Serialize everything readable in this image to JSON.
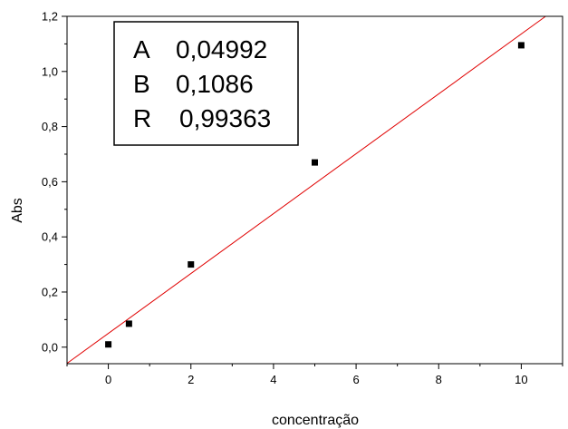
{
  "chart_data": {
    "type": "scatter",
    "xlabel": "concentração",
    "ylabel": "Abs",
    "xlim": [
      -1,
      11
    ],
    "ylim": [
      -0.06,
      1.2
    ],
    "x_ticks": [
      0,
      2,
      4,
      6,
      8,
      10
    ],
    "x_tick_labels": [
      "0",
      "2",
      "4",
      "6",
      "8",
      "10"
    ],
    "y_ticks": [
      0.0,
      0.2,
      0.4,
      0.6,
      0.8,
      1.0,
      1.2
    ],
    "y_tick_labels": [
      "0,0",
      "0,2",
      "0,4",
      "0,6",
      "0,8",
      "1,0",
      "1,2"
    ],
    "points": [
      {
        "x": 0,
        "y": 0.01
      },
      {
        "x": 0.5,
        "y": 0.085
      },
      {
        "x": 2,
        "y": 0.3
      },
      {
        "x": 5,
        "y": 0.67
      },
      {
        "x": 10,
        "y": 1.095
      }
    ],
    "fit_line": {
      "intercept": 0.04992,
      "slope": 0.1086,
      "color": "#e00000"
    },
    "grid": false,
    "stats_box": {
      "rows": [
        {
          "label": "A",
          "value": "0,04992"
        },
        {
          "label": "B",
          "value": "0,1086"
        },
        {
          "label": "R",
          "value": "0,99363"
        }
      ]
    }
  }
}
